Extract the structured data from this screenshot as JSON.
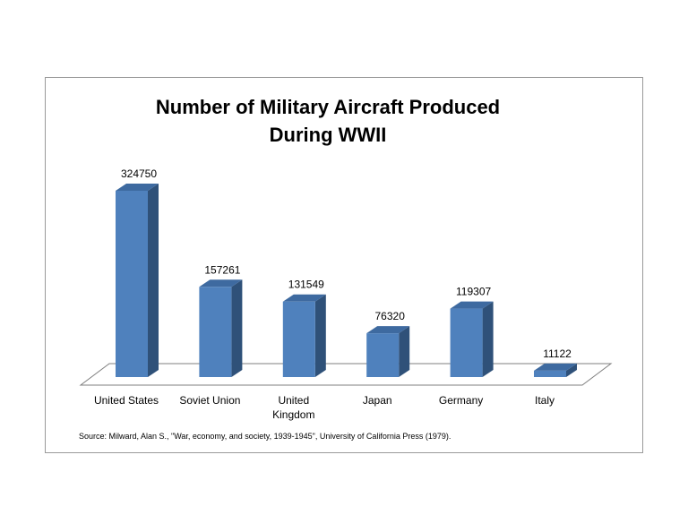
{
  "chart_data": {
    "type": "bar",
    "title_lines": [
      "Number of Military Aircraft Produced",
      "During WWII"
    ],
    "categories": [
      "United States",
      "Soviet Union",
      "United\nKingdom",
      "Japan",
      "Germany",
      "Italy"
    ],
    "values": [
      324750,
      157261,
      131549,
      76320,
      119307,
      11122
    ],
    "data_labels": [
      "324750",
      "157261",
      "131549",
      "76320",
      "119307",
      "11122"
    ],
    "ylim": [
      0,
      324750
    ],
    "grid": false,
    "legend": "none",
    "style": "3d-column",
    "colors": {
      "front": "#4f81bd",
      "side": "#2f5179",
      "top": "#3e6aa0",
      "floor": "#ffffff",
      "floor_edge": "#7f7f7f"
    },
    "source": "Source: Milward, Alan S., \"War, economy, and society, 1939-1945\", University of California Press (1979)."
  }
}
